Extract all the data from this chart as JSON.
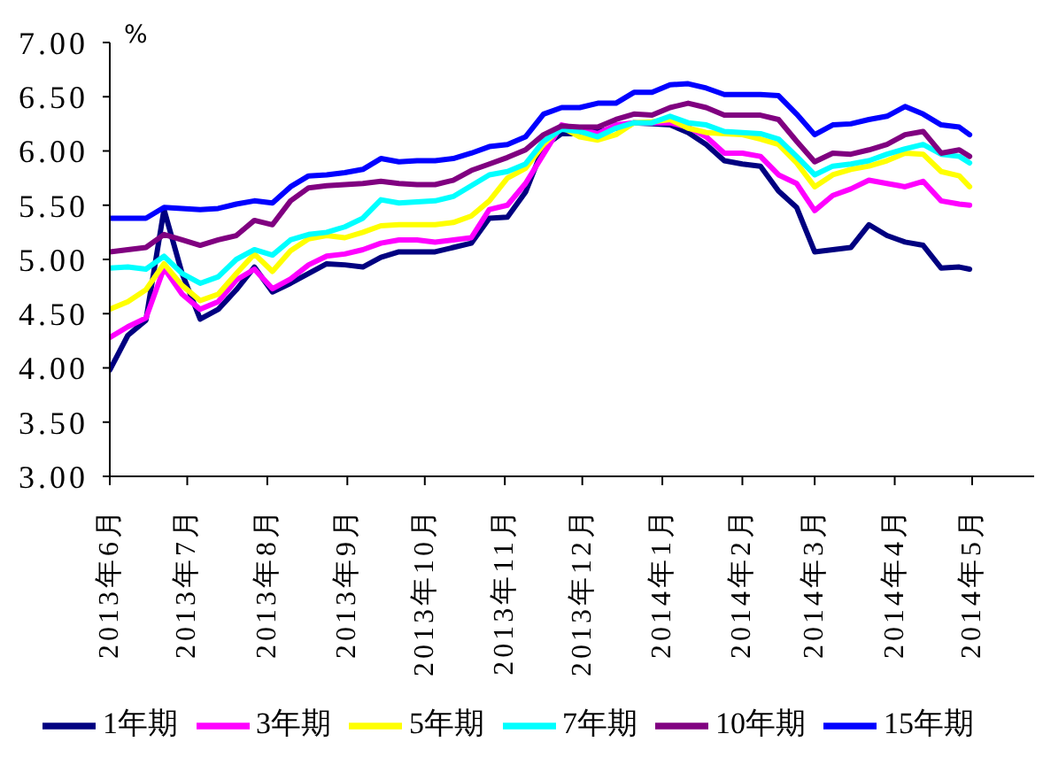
{
  "chart_data": {
    "type": "line",
    "ylabel": "%",
    "x": [
      "2013-06-01",
      "2013-06-08",
      "2013-06-15",
      "2013-06-22",
      "2013-06-29",
      "2013-07-06",
      "2013-07-13",
      "2013-07-20",
      "2013-07-27",
      "2013-08-03",
      "2013-08-10",
      "2013-08-17",
      "2013-08-24",
      "2013-08-31",
      "2013-09-07",
      "2013-09-14",
      "2013-09-21",
      "2013-09-28",
      "2013-10-05",
      "2013-10-12",
      "2013-10-19",
      "2013-10-26",
      "2013-11-02",
      "2013-11-09",
      "2013-11-16",
      "2013-11-23",
      "2013-11-30",
      "2013-12-07",
      "2013-12-14",
      "2013-12-21",
      "2013-12-28",
      "2014-01-04",
      "2014-01-11",
      "2014-01-18",
      "2014-01-25",
      "2014-02-01",
      "2014-02-08",
      "2014-02-15",
      "2014-02-22",
      "2014-03-01",
      "2014-03-08",
      "2014-03-15",
      "2014-03-22",
      "2014-03-29",
      "2014-04-05",
      "2014-04-12",
      "2014-04-19",
      "2014-04-26",
      "2014-04-30"
    ],
    "series": [
      {
        "name": "1年期",
        "color": "#000080",
        "values": [
          3.98,
          4.3,
          4.44,
          5.46,
          4.87,
          4.45,
          4.54,
          4.72,
          4.93,
          4.7,
          4.78,
          4.87,
          4.96,
          4.95,
          4.93,
          5.02,
          5.07,
          5.07,
          5.07,
          5.11,
          5.15,
          5.38,
          5.39,
          5.62,
          6.04,
          6.16,
          6.16,
          6.18,
          6.21,
          6.26,
          6.25,
          6.24,
          6.17,
          6.06,
          5.91,
          5.88,
          5.86,
          5.63,
          5.48,
          5.07,
          5.09,
          5.11,
          5.32,
          5.22,
          5.16,
          5.13,
          4.92,
          4.93,
          4.91
        ]
      },
      {
        "name": "3年期",
        "color": "#ff00ff",
        "values": [
          4.28,
          4.38,
          4.46,
          4.92,
          4.68,
          4.54,
          4.61,
          4.81,
          4.91,
          4.73,
          4.82,
          4.95,
          5.03,
          5.05,
          5.09,
          5.15,
          5.18,
          5.18,
          5.16,
          5.18,
          5.2,
          5.46,
          5.5,
          5.7,
          5.97,
          6.24,
          6.2,
          6.16,
          6.24,
          6.26,
          6.26,
          6.26,
          6.22,
          6.13,
          5.98,
          5.98,
          5.95,
          5.78,
          5.7,
          5.45,
          5.59,
          5.65,
          5.73,
          5.7,
          5.67,
          5.72,
          5.54,
          5.51,
          5.5
        ]
      },
      {
        "name": "5年期",
        "color": "#ffff00",
        "values": [
          4.54,
          4.61,
          4.72,
          4.96,
          4.76,
          4.62,
          4.68,
          4.87,
          5.05,
          4.89,
          5.08,
          5.19,
          5.22,
          5.2,
          5.25,
          5.31,
          5.32,
          5.32,
          5.32,
          5.34,
          5.4,
          5.54,
          5.75,
          5.84,
          6.06,
          6.22,
          6.13,
          6.1,
          6.15,
          6.26,
          6.27,
          6.29,
          6.21,
          6.17,
          6.16,
          6.15,
          6.11,
          6.06,
          5.89,
          5.67,
          5.78,
          5.83,
          5.86,
          5.91,
          5.98,
          5.97,
          5.81,
          5.77,
          5.67
        ]
      },
      {
        "name": "7年期",
        "color": "#00ffff",
        "values": [
          4.92,
          4.93,
          4.91,
          5.03,
          4.87,
          4.78,
          4.84,
          5.0,
          5.09,
          5.04,
          5.18,
          5.23,
          5.25,
          5.3,
          5.38,
          5.55,
          5.52,
          5.53,
          5.54,
          5.58,
          5.68,
          5.78,
          5.81,
          5.88,
          6.09,
          6.2,
          6.18,
          6.13,
          6.21,
          6.26,
          6.26,
          6.32,
          6.26,
          6.24,
          6.18,
          6.17,
          6.16,
          6.11,
          5.95,
          5.78,
          5.86,
          5.88,
          5.91,
          5.97,
          6.02,
          6.06,
          5.97,
          5.95,
          5.89
        ]
      },
      {
        "name": "10年期",
        "color": "#800080",
        "values": [
          5.07,
          5.09,
          5.11,
          5.23,
          5.18,
          5.13,
          5.18,
          5.22,
          5.36,
          5.32,
          5.54,
          5.66,
          5.68,
          5.69,
          5.7,
          5.72,
          5.7,
          5.69,
          5.69,
          5.73,
          5.82,
          5.88,
          5.94,
          6.01,
          6.15,
          6.23,
          6.22,
          6.22,
          6.29,
          6.34,
          6.33,
          6.4,
          6.44,
          6.4,
          6.33,
          6.33,
          6.33,
          6.29,
          6.09,
          5.9,
          5.98,
          5.97,
          6.01,
          6.06,
          6.15,
          6.18,
          5.98,
          6.01,
          5.95
        ]
      },
      {
        "name": "15年期",
        "color": "#0000ff",
        "values": [
          5.38,
          5.38,
          5.38,
          5.48,
          5.47,
          5.46,
          5.47,
          5.51,
          5.54,
          5.52,
          5.67,
          5.77,
          5.78,
          5.8,
          5.83,
          5.93,
          5.9,
          5.91,
          5.91,
          5.93,
          5.98,
          6.04,
          6.06,
          6.13,
          6.34,
          6.4,
          6.4,
          6.44,
          6.44,
          6.54,
          6.54,
          6.61,
          6.62,
          6.58,
          6.52,
          6.52,
          6.52,
          6.51,
          6.34,
          6.15,
          6.24,
          6.25,
          6.29,
          6.32,
          6.41,
          6.34,
          6.24,
          6.22,
          6.15
        ]
      }
    ],
    "xlim": [
      "2013-06-01",
      "2014-05-25"
    ],
    "xticks": [
      {
        "value": "2013-06-01",
        "label": "2013年6月"
      },
      {
        "value": "2013-07-01",
        "label": "2013年7月"
      },
      {
        "value": "2013-08-01",
        "label": "2013年8月"
      },
      {
        "value": "2013-09-01",
        "label": "2013年9月"
      },
      {
        "value": "2013-10-01",
        "label": "2013年10月"
      },
      {
        "value": "2013-11-01",
        "label": "2013年11月"
      },
      {
        "value": "2013-12-01",
        "label": "2013年12月"
      },
      {
        "value": "2014-01-01",
        "label": "2014年1月"
      },
      {
        "value": "2014-02-01",
        "label": "2014年2月"
      },
      {
        "value": "2014-03-01",
        "label": "2014年3月"
      },
      {
        "value": "2014-04-01",
        "label": "2014年4月"
      },
      {
        "value": "2014-05-01",
        "label": "2014年5月"
      }
    ],
    "ylim": [
      3,
      7
    ],
    "yticks": [
      {
        "value": 3,
        "label": "3.00"
      },
      {
        "value": 3.5,
        "label": "3.50"
      },
      {
        "value": 4,
        "label": "4.00"
      },
      {
        "value": 4.5,
        "label": "4.50"
      },
      {
        "value": 5,
        "label": "5.00"
      },
      {
        "value": 5.5,
        "label": "5.50"
      },
      {
        "value": 6,
        "label": "6.00"
      },
      {
        "value": 6.5,
        "label": "6.50"
      },
      {
        "value": 7,
        "label": "7.00"
      }
    ],
    "legend": "bottom"
  }
}
